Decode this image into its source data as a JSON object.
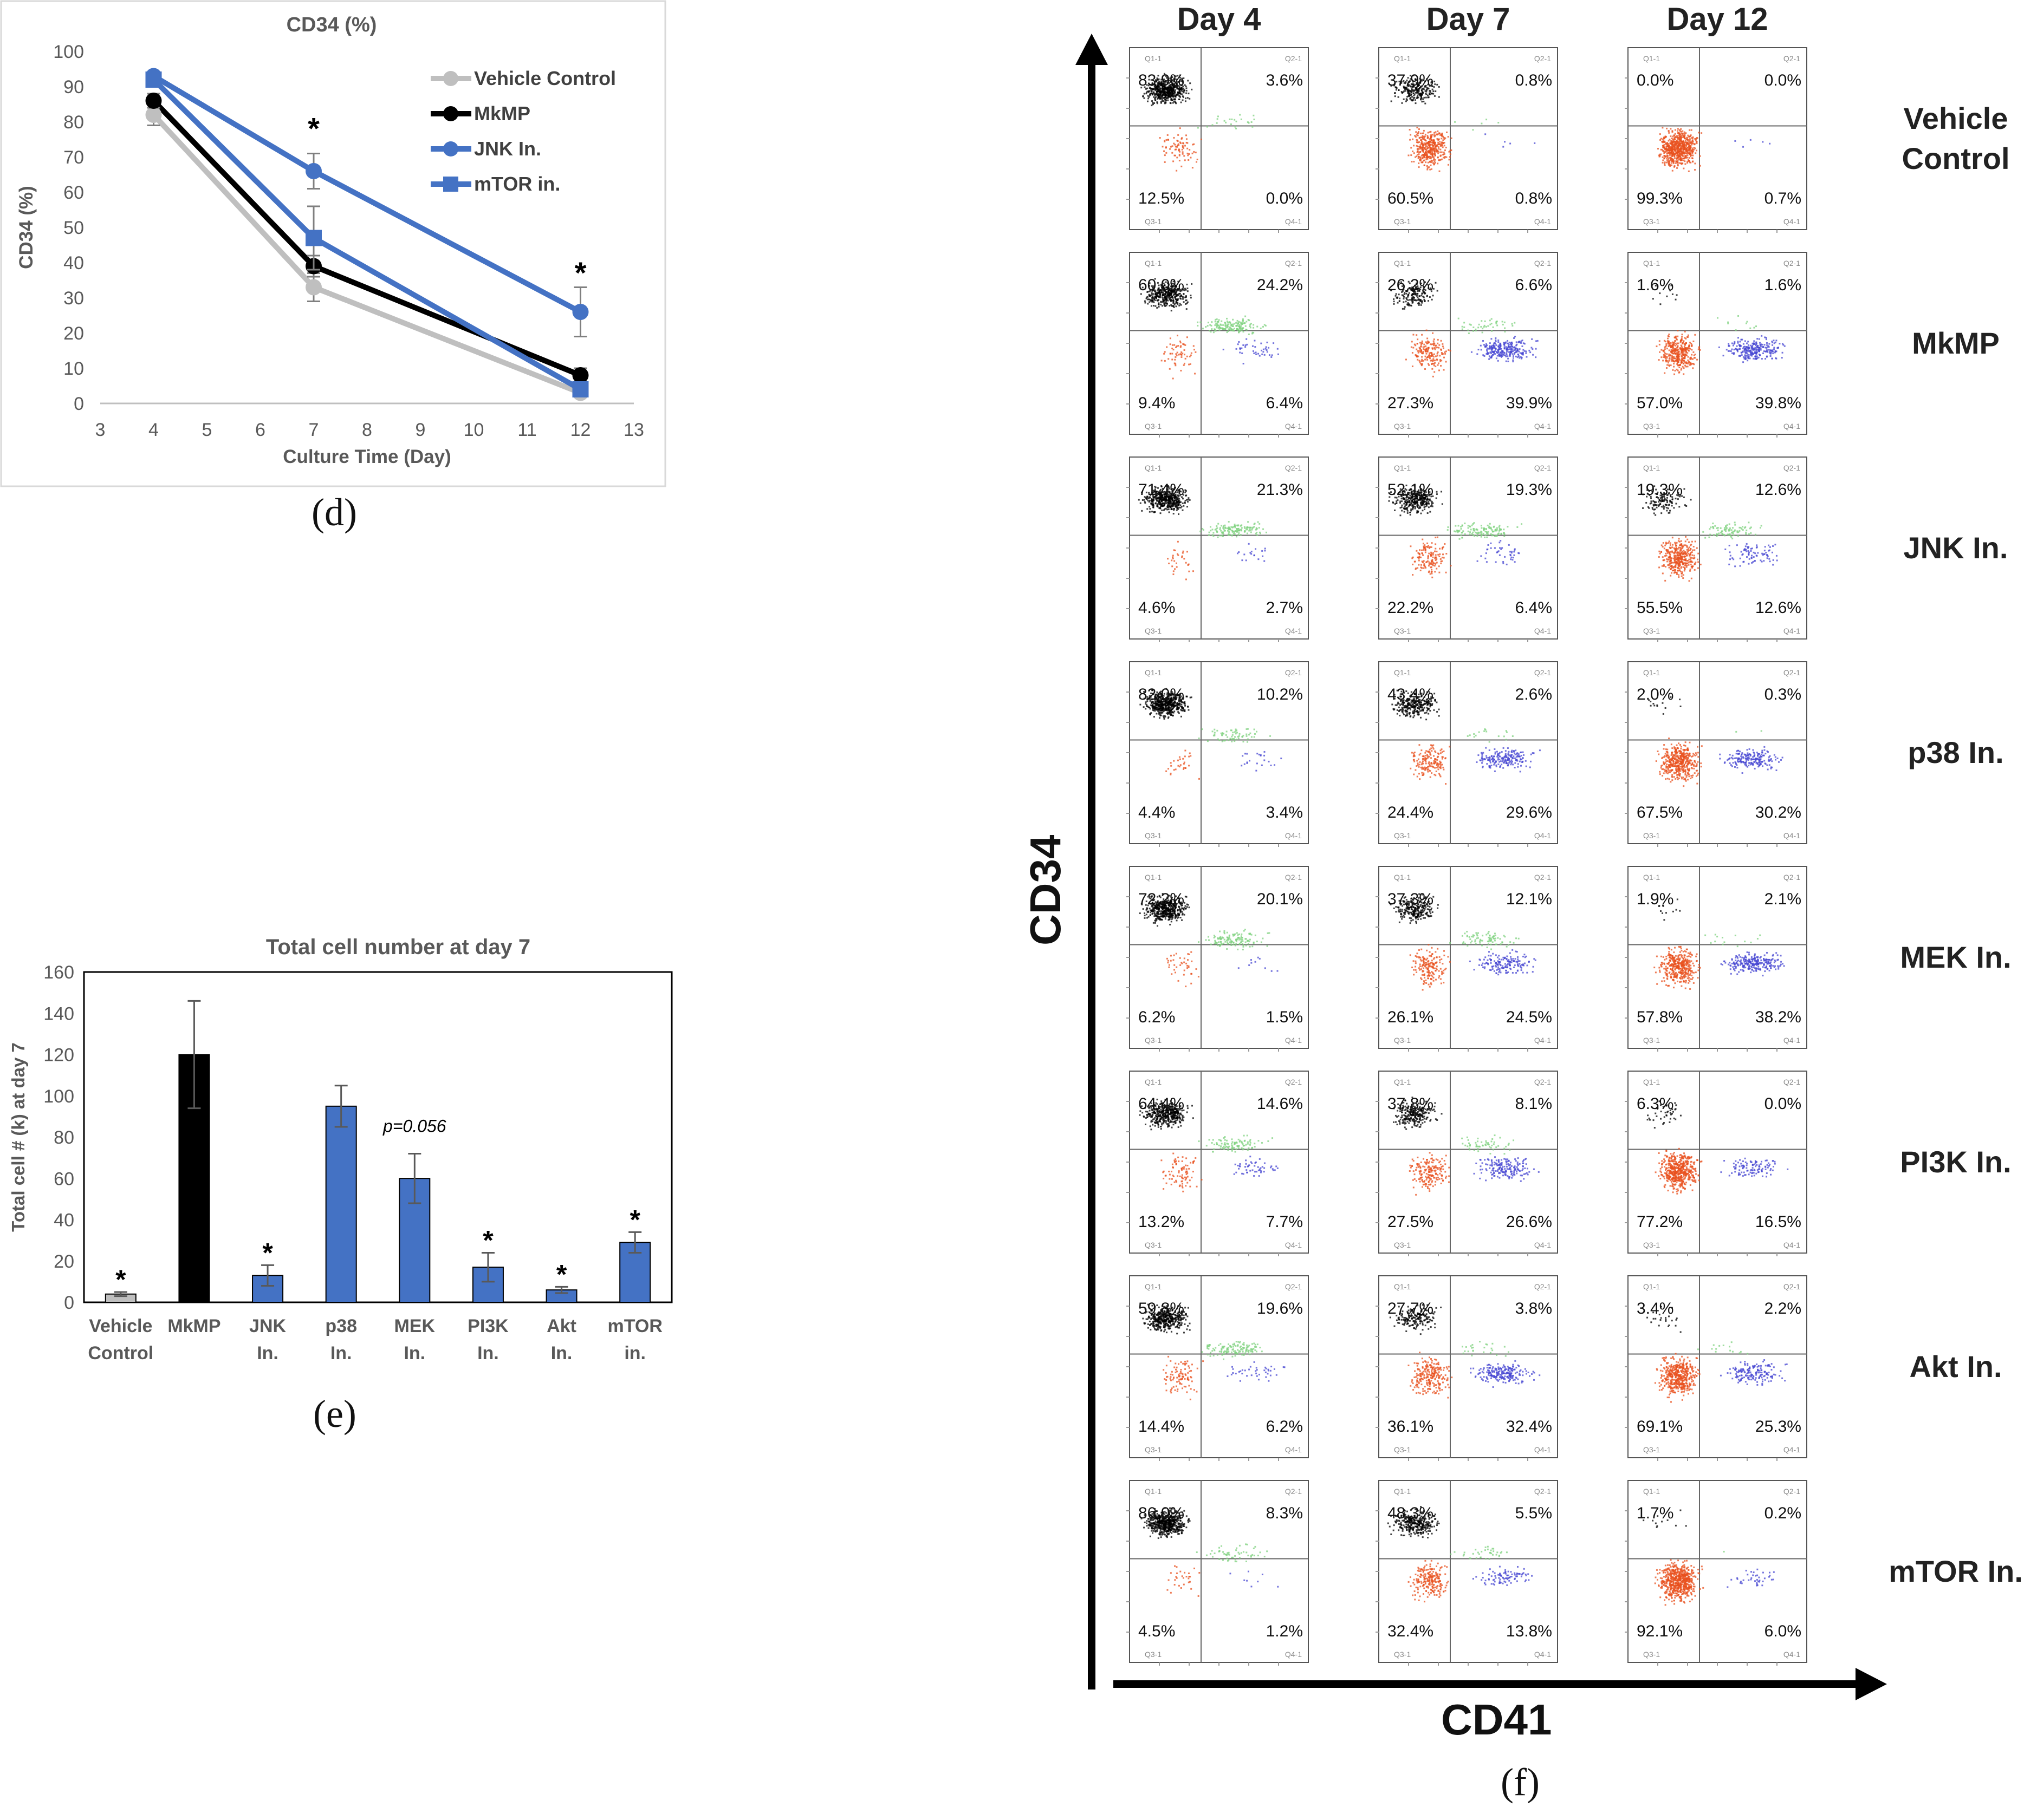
{
  "chart_data": [
    {
      "panel": "d",
      "type": "line",
      "title": "CD34 (%)",
      "xlabel": "Culture Time (Day)",
      "ylabel": "CD34 (%)",
      "xlim": [
        3,
        13
      ],
      "ylim": [
        0,
        100
      ],
      "xticks": [
        3,
        4,
        5,
        6,
        7,
        8,
        9,
        10,
        11,
        12,
        13
      ],
      "yticks": [
        0,
        10,
        20,
        30,
        40,
        50,
        60,
        70,
        80,
        90,
        100
      ],
      "x": [
        4,
        7,
        12
      ],
      "series": [
        {
          "name": "Vehicle Control",
          "color": "#bfbfbf",
          "marker": "circle",
          "values": [
            82,
            33,
            3
          ],
          "errors": [
            3,
            4,
            1
          ]
        },
        {
          "name": "MkMP",
          "color": "#000000",
          "marker": "circle",
          "values": [
            86,
            39,
            8
          ],
          "errors": [
            2,
            3,
            2
          ]
        },
        {
          "name": "JNK In.",
          "color": "#4472c4",
          "marker": "circle",
          "values": [
            93,
            66,
            26
          ],
          "errors": [
            1,
            5,
            7
          ]
        },
        {
          "name": "mTOR  in.",
          "color": "#4472c4",
          "marker": "square",
          "values": [
            92,
            47,
            4
          ],
          "errors": [
            1,
            9,
            2
          ]
        }
      ],
      "annotations": [
        {
          "x": 7,
          "y": 79,
          "text": "*"
        },
        {
          "x": 12,
          "y": 38,
          "text": "*"
        }
      ],
      "legend": "top-right",
      "panel_label": "(d)"
    },
    {
      "panel": "e",
      "type": "bar",
      "title": "Total cell number at day 7",
      "ylabel": "Total cell # (k) at day 7",
      "ylim": [
        0,
        160
      ],
      "yticks": [
        0,
        20,
        40,
        60,
        80,
        100,
        120,
        140,
        160
      ],
      "categories": [
        [
          "Vehicle",
          "Control"
        ],
        [
          "MkMP",
          ""
        ],
        [
          "JNK",
          "In."
        ],
        [
          "p38",
          "In."
        ],
        [
          "MEK",
          "In."
        ],
        [
          "PI3K",
          "In."
        ],
        [
          "Akt",
          "In."
        ],
        [
          "mTOR",
          "in."
        ]
      ],
      "values": [
        4,
        120,
        13,
        95,
        60,
        17,
        6,
        29
      ],
      "errors": [
        1,
        26,
        5,
        10,
        12,
        7,
        1.5,
        5
      ],
      "colors": [
        "#bfbfbf",
        "#000000",
        "#4472c4",
        "#4472c4",
        "#4472c4",
        "#4472c4",
        "#4472c4",
        "#4472c4"
      ],
      "marks": [
        "*",
        "",
        "*",
        "",
        "p=0.056",
        "*",
        "*",
        "*"
      ],
      "panel_label": "(e)"
    },
    {
      "panel": "f",
      "type": "scatter",
      "title": "",
      "xlabel": "CD41",
      "ylabel": "CD34",
      "columns": [
        "Day 4",
        "Day 7",
        "Day 12"
      ],
      "rows": [
        "Vehicle Control",
        "MkMP",
        "JNK In.",
        "p38 In.",
        "MEK In.",
        "PI3K In.",
        "Akt In.",
        "mTOR In."
      ],
      "row_label_lines": [
        [
          "Vehicle",
          "Control"
        ],
        [
          "MkMP"
        ],
        [
          "JNK In."
        ],
        [
          "p38 In."
        ],
        [
          "MEK In."
        ],
        [
          "PI3K In."
        ],
        [
          "Akt In."
        ],
        [
          "mTOR In."
        ]
      ],
      "quadrant_names": [
        "Q1-1",
        "Q2-1",
        "Q3-1",
        "Q4-1"
      ],
      "quadrants": [
        [
          [
            "83.9%",
            "3.6%",
            "12.5%",
            "0.0%"
          ],
          [
            "37.9%",
            "0.8%",
            "60.5%",
            "0.8%"
          ],
          [
            "0.0%",
            "0.0%",
            "99.3%",
            "0.7%"
          ]
        ],
        [
          [
            "60.0%",
            "24.2%",
            "9.4%",
            "6.4%"
          ],
          [
            "26.2%",
            "6.6%",
            "27.3%",
            "39.9%"
          ],
          [
            "1.6%",
            "1.6%",
            "57.0%",
            "39.8%"
          ]
        ],
        [
          [
            "71.4%",
            "21.3%",
            "4.6%",
            "2.7%"
          ],
          [
            "52.1%",
            "19.3%",
            "22.2%",
            "6.4%"
          ],
          [
            "19.3%",
            "12.6%",
            "55.5%",
            "12.6%"
          ]
        ],
        [
          [
            "82.0%",
            "10.2%",
            "4.4%",
            "3.4%"
          ],
          [
            "43.4%",
            "2.6%",
            "24.4%",
            "29.6%"
          ],
          [
            "2.0%",
            "0.3%",
            "67.5%",
            "30.2%"
          ]
        ],
        [
          [
            "72.2%",
            "20.1%",
            "6.2%",
            "1.5%"
          ],
          [
            "37.3%",
            "12.1%",
            "26.1%",
            "24.5%"
          ],
          [
            "1.9%",
            "2.1%",
            "57.8%",
            "38.2%"
          ]
        ],
        [
          [
            "64.4%",
            "14.6%",
            "13.2%",
            "7.7%"
          ],
          [
            "37.8%",
            "8.1%",
            "27.5%",
            "26.6%"
          ],
          [
            "6.3%",
            "0.0%",
            "77.2%",
            "16.5%"
          ]
        ],
        [
          [
            "59.8%",
            "19.6%",
            "14.4%",
            "6.2%"
          ],
          [
            "27.7%",
            "3.8%",
            "36.1%",
            "32.4%"
          ],
          [
            "3.4%",
            "2.2%",
            "69.1%",
            "25.3%"
          ]
        ],
        [
          [
            "86.0%",
            "8.3%",
            "4.5%",
            "1.2%"
          ],
          [
            "48.3%",
            "5.5%",
            "32.4%",
            "13.8%"
          ],
          [
            "1.7%",
            "0.2%",
            "92.1%",
            "6.0%"
          ]
        ]
      ],
      "quadrant_colors": {
        "q1": "#000000",
        "q2": "#7fd17f",
        "q3": "#e8501e",
        "q4": "#4646d2"
      },
      "panel_label": "(f)"
    }
  ]
}
